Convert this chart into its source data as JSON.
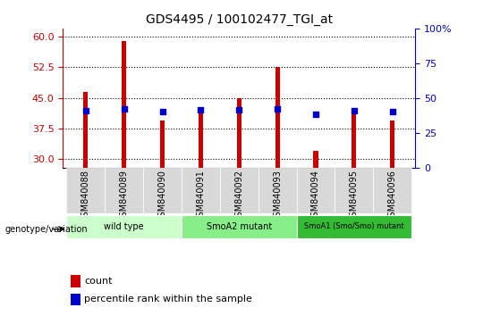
{
  "title": "GDS4495 / 100102477_TGI_at",
  "samples": [
    "GSM840088",
    "GSM840089",
    "GSM840090",
    "GSM840091",
    "GSM840092",
    "GSM840093",
    "GSM840094",
    "GSM840095",
    "GSM840096"
  ],
  "count_values": [
    46.5,
    59.0,
    39.5,
    41.5,
    45.0,
    52.5,
    32.0,
    41.5,
    39.5
  ],
  "percentile_values": [
    41.0,
    42.0,
    40.5,
    41.5,
    41.5,
    42.0,
    38.5,
    41.0,
    40.5
  ],
  "ylim_left": [
    28,
    62
  ],
  "ylim_right": [
    0,
    100
  ],
  "yticks_left": [
    30,
    37.5,
    45,
    52.5,
    60
  ],
  "yticks_right": [
    0,
    25,
    50,
    75,
    100
  ],
  "bar_color": "#cc0000",
  "dot_color": "#0000cc",
  "groups": [
    {
      "label": "wild type",
      "start": 0,
      "end": 3,
      "color": "#ccffcc"
    },
    {
      "label": "SmoA2 mutant",
      "start": 3,
      "end": 6,
      "color": "#88ee88"
    },
    {
      "label": "SmoA1 (Smo/Smo) mutant",
      "start": 6,
      "end": 9,
      "color": "#33bb33"
    }
  ],
  "group_label": "genotype/variation",
  "legend_count": "count",
  "legend_percentile": "percentile rank within the sample",
  "bar_width": 0.12,
  "dot_size": 20,
  "grid_color": "black",
  "grid_linestyle": "dotted",
  "left_color": "#cc0000",
  "right_color": "#0000cc"
}
